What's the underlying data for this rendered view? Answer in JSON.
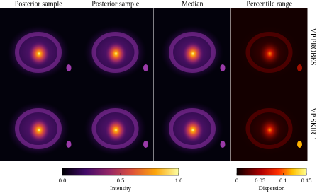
{
  "columns": [
    "Posterior sample",
    "Posterior sample",
    "Median",
    "Percentile range"
  ],
  "rows": [
    "VP PROBES",
    "VP SKIRT"
  ],
  "colorbars": [
    {
      "label": "Intensity",
      "lim": [
        0,
        1
      ],
      "ticks": [
        {
          "value": 0,
          "label": "0.0"
        },
        0.5,
        {
          "value": 1,
          "label": "1.0"
        }
      ]
    },
    {
      "label": "Dispersion",
      "lim": [
        0,
        0.15
      ],
      "ticks": [
        0,
        0.05,
        0.1,
        0.15
      ]
    }
  ]
}
